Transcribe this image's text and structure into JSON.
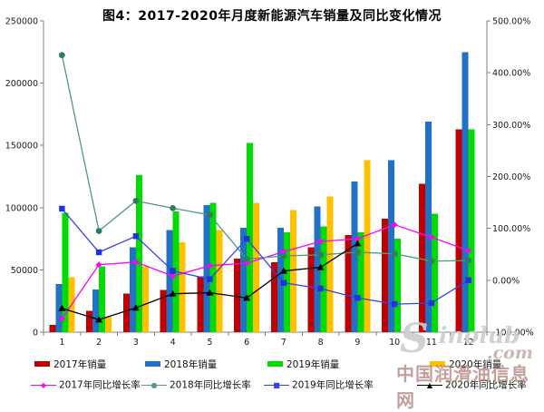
{
  "chart_data": {
    "type": "bar+line combo",
    "title": "图4：2017-2020年月度新能源汽车销量及同比变化情况",
    "categories": [
      "1",
      "2",
      "3",
      "4",
      "5",
      "6",
      "7",
      "8",
      "9",
      "10",
      "11",
      "12"
    ],
    "bar_series": [
      {
        "name": "2017年销量",
        "color": "#C00000",
        "values": [
          5700,
          17000,
          31000,
          34000,
          45000,
          59000,
          56000,
          68000,
          78000,
          91000,
          119000,
          163000
        ]
      },
      {
        "name": "2018年销量",
        "color": "#1F72C6",
        "values": [
          38500,
          34400,
          68000,
          82000,
          102000,
          84000,
          84000,
          101000,
          121000,
          138000,
          169000,
          225000
        ]
      },
      {
        "name": "2019年销量",
        "color": "#00DB00",
        "values": [
          96000,
          53000,
          126000,
          97000,
          104000,
          152000,
          80000,
          85000,
          80000,
          75000,
          95000,
          163000
        ]
      },
      {
        "name": "2020年销量",
        "color": "#FFC000",
        "values": [
          44000,
          12000,
          53000,
          72000,
          82000,
          104000,
          98000,
          109000,
          138000,
          null,
          null,
          null
        ]
      }
    ],
    "line_series": [
      {
        "name": "2017年同比增长率",
        "color": "#FF00FF",
        "marker": "diamond",
        "values": [
          -74,
          30,
          35,
          8,
          28,
          33,
          55,
          75,
          80,
          107,
          83,
          57
        ]
      },
      {
        "name": "2018年同比增长率",
        "color": "#4E9B7E",
        "marker": "circle",
        "values": [
          434,
          95,
          153,
          139,
          126,
          41,
          47,
          49,
          54,
          51,
          37,
          38
        ]
      },
      {
        "name": "2019年同比增长率",
        "color": "#3344EE",
        "marker": "square",
        "values": [
          138,
          54,
          85,
          18,
          2,
          80,
          -5,
          -16,
          -34,
          -46,
          -44,
          0
        ]
      },
      {
        "name": "2020年同比增长率",
        "color": "#000000",
        "marker": "triangle",
        "values": [
          -54,
          -76,
          -53,
          -26,
          -24,
          -34,
          18,
          25,
          71,
          null,
          null,
          null
        ]
      }
    ],
    "left_axis": {
      "min": 0,
      "max": 250000,
      "step": 50000,
      "ticks": [
        "0",
        "50000",
        "100000",
        "150000",
        "200000",
        "250000"
      ]
    },
    "right_axis": {
      "min": -100,
      "max": 500,
      "step": 100,
      "ticks": [
        "-100.00%",
        "0.00%",
        "100.00%",
        "200.00%",
        "300.00%",
        "400.00%",
        "500.00%"
      ]
    },
    "grid": "off",
    "legend_position": "bottom"
  },
  "watermark": {
    "brand_initial": "S",
    "brand_rest": "inolub",
    "brand_suffix": ".com",
    "site_name": "中国润滑油信息网"
  }
}
